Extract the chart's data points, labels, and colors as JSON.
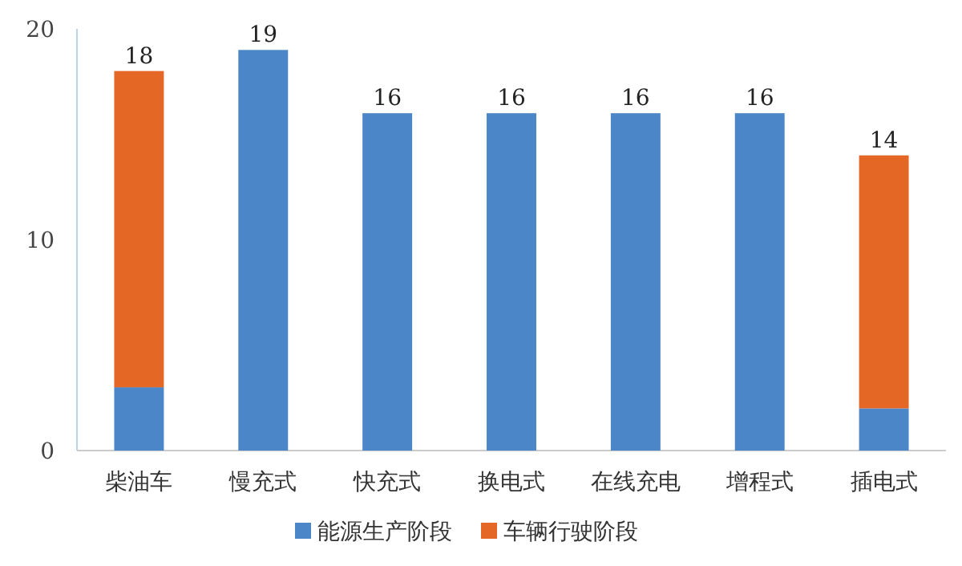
{
  "chart_data": {
    "type": "bar",
    "stacked": true,
    "categories": [
      "柴油车",
      "慢充式",
      "快充式",
      "换电式",
      "在线充电",
      "增程式",
      "插电式"
    ],
    "series": [
      {
        "name": "能源生产阶段",
        "color": "#4a86c8",
        "values": [
          3,
          19,
          16,
          16,
          16,
          16,
          2
        ]
      },
      {
        "name": "车辆行驶阶段",
        "color": "#e46726",
        "values": [
          15,
          null,
          null,
          null,
          null,
          null,
          12
        ]
      }
    ],
    "totals": [
      "18",
      "19",
      "16",
      "16",
      "16",
      "16",
      "14"
    ],
    "ylim": [
      0,
      20
    ],
    "yticks": [
      0,
      10,
      20
    ],
    "grid": false,
    "legend": "bottom"
  }
}
